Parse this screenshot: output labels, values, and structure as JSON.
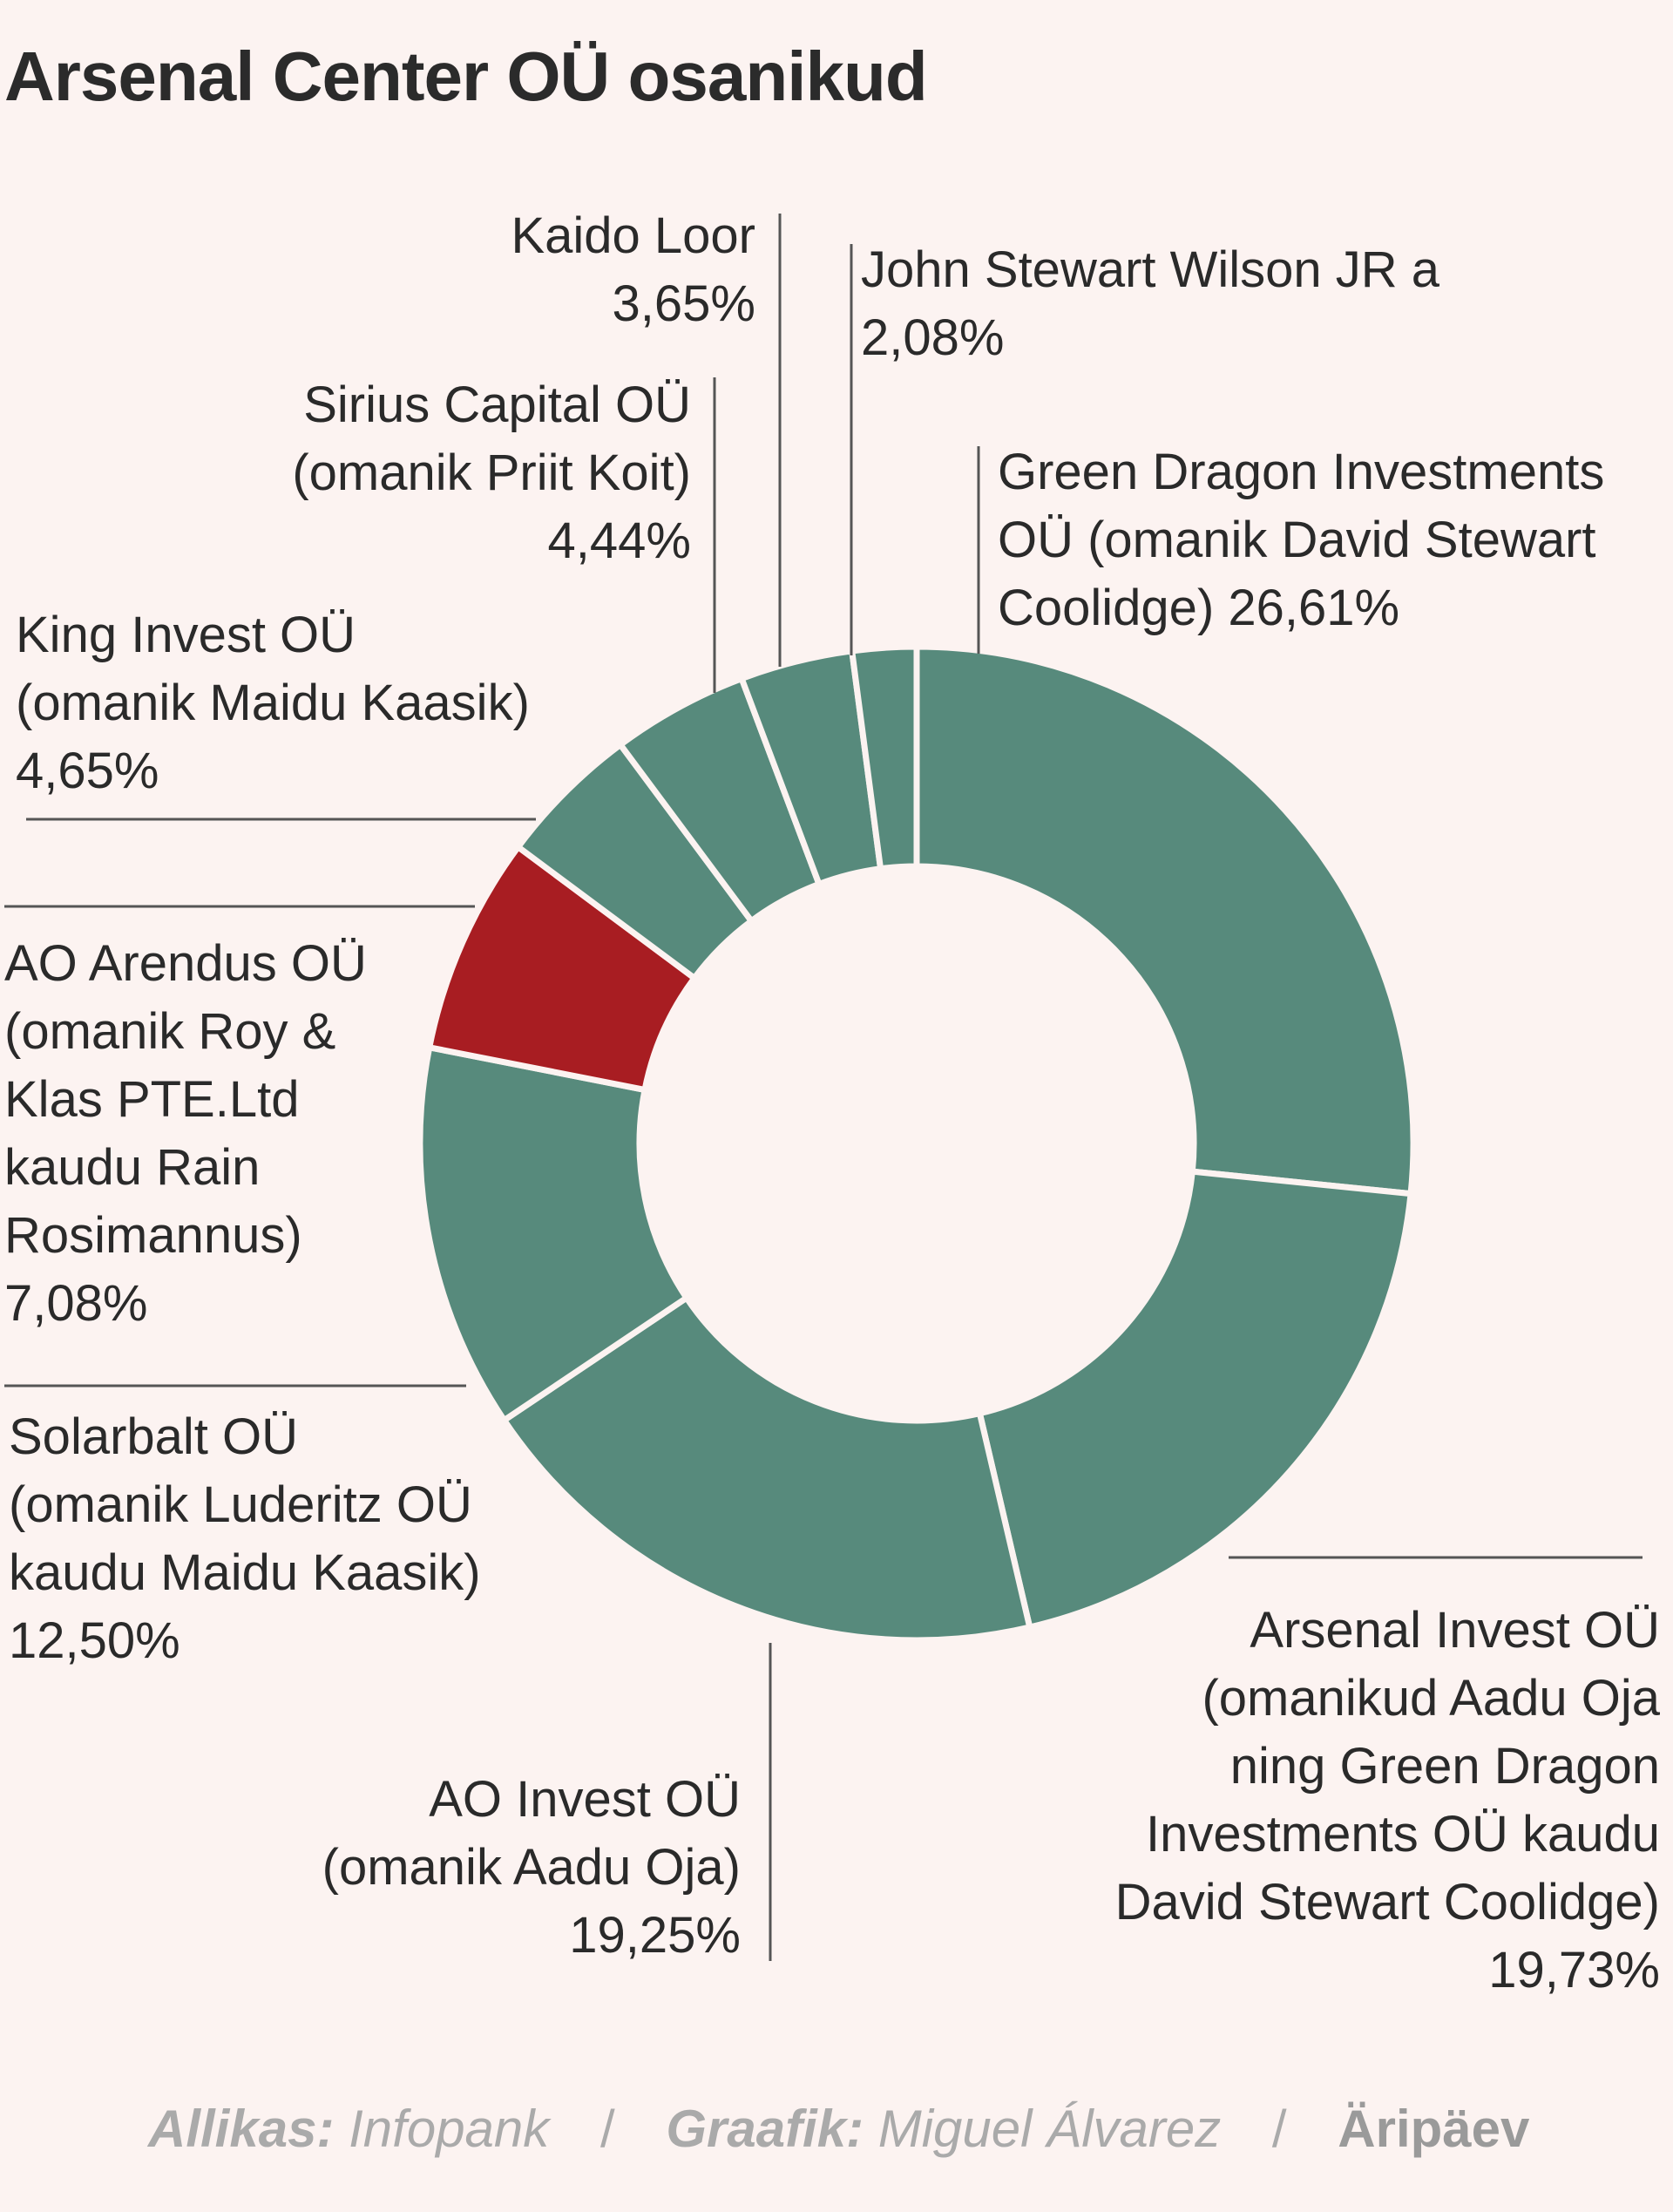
{
  "colors": {
    "main": "#578a7c",
    "highlight": "#a81d22",
    "background": "#fcf3f1",
    "stroke": "#fcf3f1",
    "leader": "#555555"
  },
  "chart_data": {
    "type": "pie",
    "variant": "donut",
    "title": "Arsenal Center OÜ osanikud",
    "unit": "%",
    "slices": [
      {
        "id": "green-dragon",
        "label_lines": [
          "Green Dragon Investments",
          "OÜ (omanik David Stewart",
          "Coolidge) 26,61%"
        ],
        "value": 26.61,
        "value_text": "26,61%",
        "highlight": false
      },
      {
        "id": "arsenal-invest",
        "label_lines": [
          "Arsenal Invest OÜ",
          "(omanikud Aadu Oja",
          "ning Green Dragon",
          "Investments OÜ kaudu",
          "David Stewart Coolidge)"
        ],
        "value": 19.73,
        "value_text": "19,73%",
        "highlight": false
      },
      {
        "id": "ao-invest",
        "label_lines": [
          "AO Invest OÜ",
          "(omanik Aadu Oja)"
        ],
        "value": 19.25,
        "value_text": "19,25%",
        "highlight": false
      },
      {
        "id": "solarbalt",
        "label_lines": [
          "Solarbalt OÜ",
          "(omanik Luderitz OÜ",
          "kaudu Maidu Kaasik)"
        ],
        "value": 12.5,
        "value_text": "12,50%",
        "highlight": false
      },
      {
        "id": "ao-arendus",
        "label_lines": [
          "AO Arendus OÜ",
          "(omanik Roy &",
          "Klas PTE.Ltd",
          "kaudu Rain",
          "Rosimannus)"
        ],
        "value": 7.08,
        "value_text": "7,08%",
        "highlight": true
      },
      {
        "id": "king-invest",
        "label_lines": [
          "King Invest OÜ",
          "(omanik Maidu Kaasik)"
        ],
        "value": 4.65,
        "value_text": "4,65%",
        "highlight": false
      },
      {
        "id": "sirius-capital",
        "label_lines": [
          "Sirius Capital OÜ",
          "(omanik Priit Koit)"
        ],
        "value": 4.44,
        "value_text": "4,44%",
        "highlight": false
      },
      {
        "id": "kaido-loor",
        "label_lines": [
          "Kaido Loor"
        ],
        "value": 3.65,
        "value_text": "3,65%",
        "highlight": false
      },
      {
        "id": "john-wilson",
        "label_lines": [
          "John Stewart Wilson JR a"
        ],
        "value": 2.08,
        "value_text": "2,08%",
        "highlight": false
      }
    ]
  },
  "footer": {
    "source_key": "Allikas:",
    "source_value": "Infopank",
    "sep1": "/",
    "graphic_key": "Graafik:",
    "graphic_value": "Miguel Álvarez",
    "sep2": "/",
    "brand": "Äripäev"
  }
}
